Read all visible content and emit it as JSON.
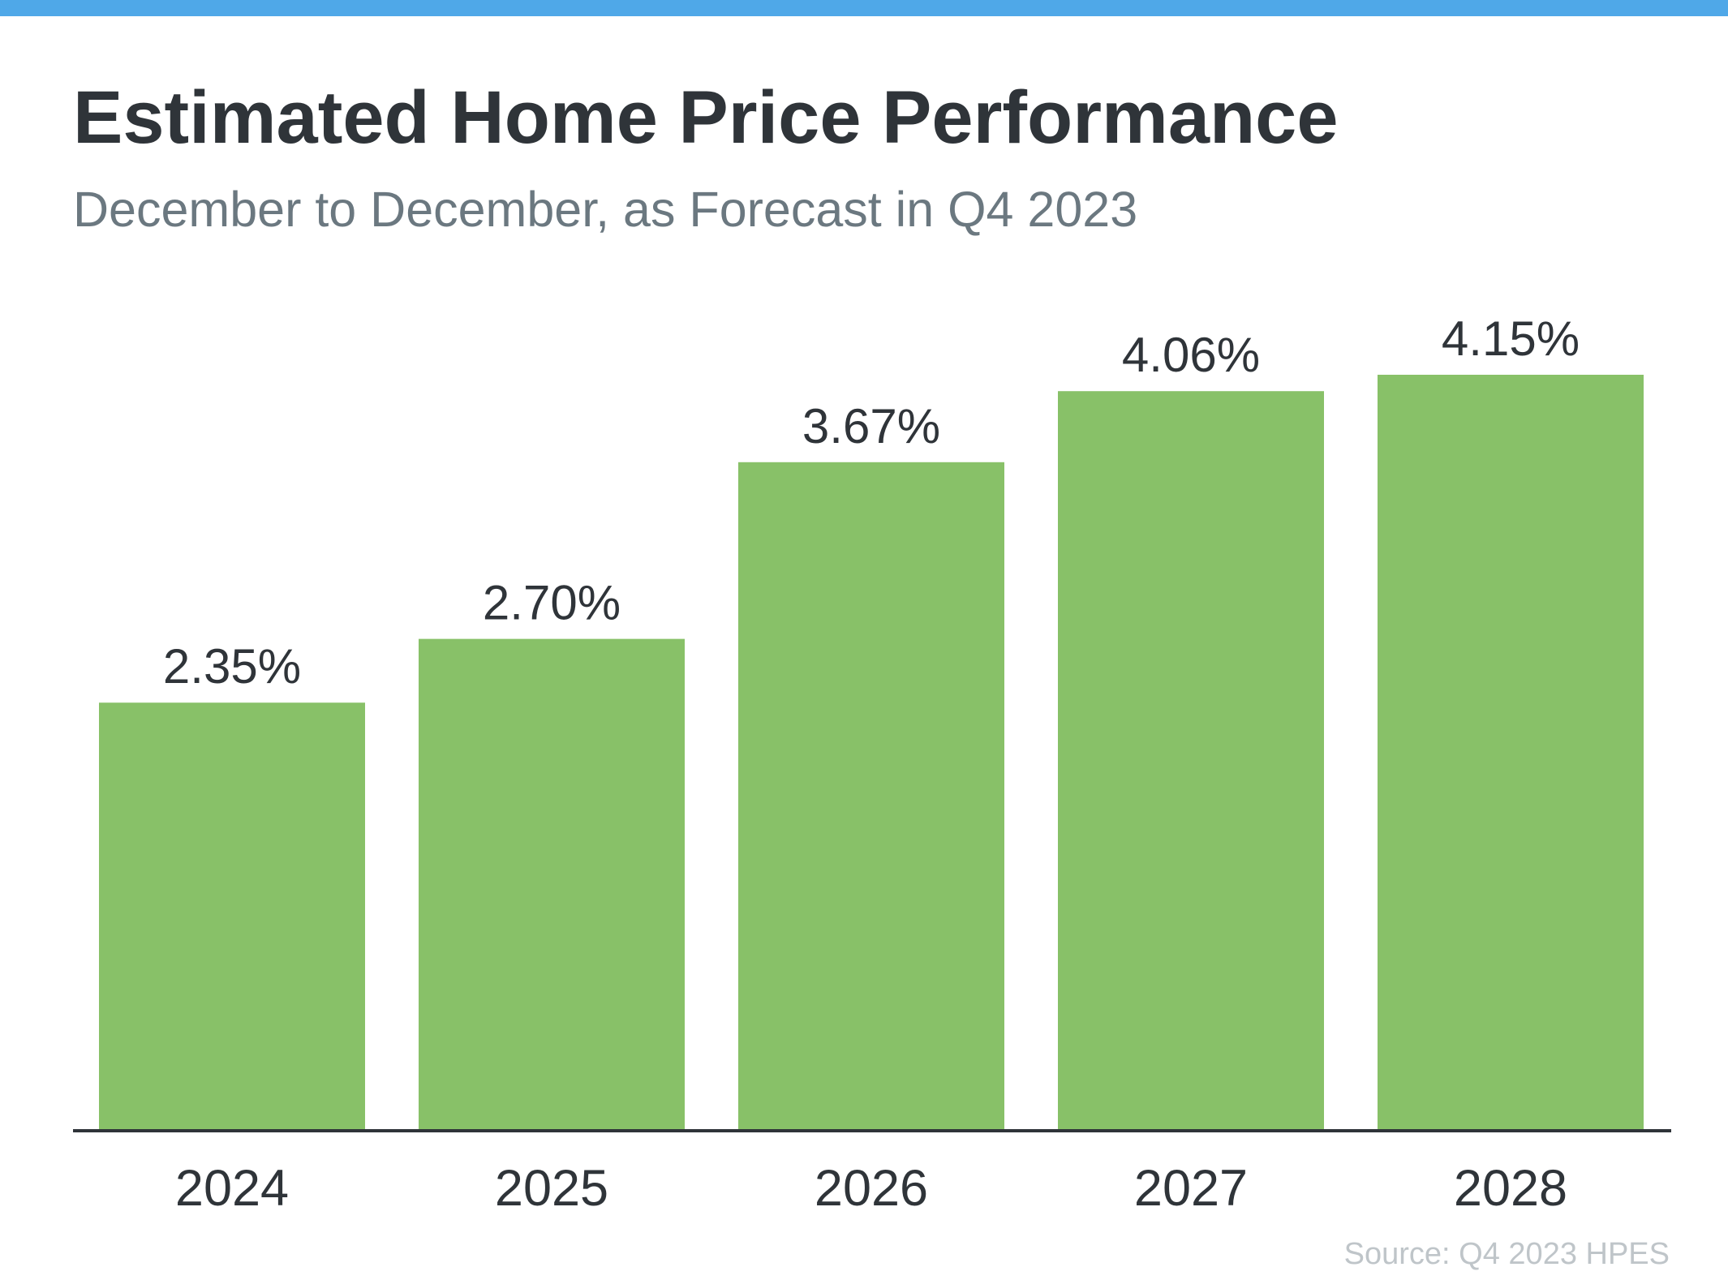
{
  "colors": {
    "top_bar": "#4fa8e8",
    "bar_fill": "#88c168",
    "axis_line": "#2f3439",
    "title": "#2f3439",
    "subtitle": "#6b7880",
    "source": "#bfc5c9"
  },
  "chart_data": {
    "type": "bar",
    "title": "Estimated Home Price Performance",
    "subtitle": "December to December, as Forecast in Q4 2023",
    "categories": [
      "2024",
      "2025",
      "2026",
      "2027",
      "2028"
    ],
    "values": [
      2.35,
      2.7,
      3.67,
      4.06,
      4.15
    ],
    "value_labels": [
      "2.35%",
      "2.70%",
      "3.67%",
      "4.06%",
      "4.15%"
    ],
    "xlabel": "",
    "ylabel": "",
    "ylim": [
      0,
      4.15
    ],
    "grid": false,
    "legend": "none",
    "source": "Source: Q4 2023 HPES"
  }
}
